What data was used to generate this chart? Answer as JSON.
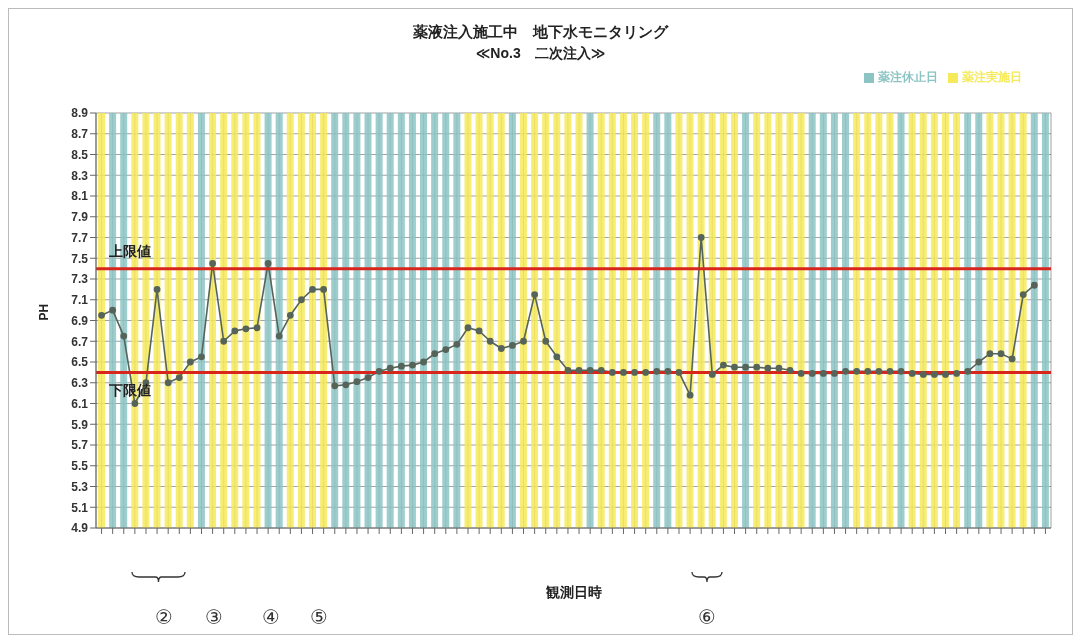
{
  "chart_data": {
    "type": "line",
    "title": "薬液注入施工中　地下水モニタリング",
    "subtitle": "≪No.3　二次注入≫",
    "xlabel": "観測日時",
    "ylabel": "PH",
    "categories": [
      null,
      null,
      null,
      null,
      null,
      null,
      null,
      null,
      null,
      null,
      null,
      null,
      null,
      null,
      null,
      null,
      null,
      null,
      null,
      null,
      null,
      null,
      null,
      null,
      null,
      null,
      null,
      null,
      null,
      null,
      null,
      null,
      null,
      null,
      null,
      null,
      null,
      null,
      null,
      null,
      null,
      null,
      null,
      null,
      null,
      null,
      null,
      null,
      null,
      null,
      null,
      null,
      null,
      null,
      null,
      null,
      null,
      null,
      null,
      null,
      null,
      null,
      null,
      null,
      null,
      null,
      null,
      null,
      null,
      null,
      null,
      null,
      null,
      null,
      null,
      null,
      null,
      null,
      null,
      null,
      null,
      null,
      null,
      null,
      null,
      null
    ],
    "stacked": true,
    "series": [
      {
        "name": "薬注実施日",
        "type": "bar",
        "color": "#f6ea5a",
        "values": [
          8.9,
          null,
          null,
          8.9,
          8.9,
          8.9,
          8.9,
          8.9,
          8.9,
          null,
          8.9,
          8.9,
          8.9,
          8.9,
          8.9,
          null,
          null,
          8.9,
          8.9,
          8.9,
          8.9,
          null,
          null,
          null,
          null,
          null,
          null,
          null,
          null,
          null,
          null,
          null,
          null,
          8.9,
          8.9,
          8.9,
          8.9,
          null,
          8.9,
          8.9,
          8.9,
          8.9,
          8.9,
          8.9,
          null,
          8.9,
          8.9,
          8.9,
          8.9,
          8.9,
          null,
          null,
          8.9,
          8.9,
          8.9,
          8.9,
          8.9,
          8.9,
          null,
          8.9,
          8.9,
          8.9,
          8.9,
          8.9,
          null,
          null,
          null,
          null,
          8.9,
          8.9,
          8.9,
          8.9,
          null,
          8.9,
          8.9,
          8.9,
          8.9,
          8.9,
          null,
          null,
          8.9,
          8.9,
          8.9,
          8.9,
          null,
          null
        ]
      },
      {
        "name": "薬注休止日",
        "type": "bar",
        "color": "#8cc4c4",
        "values": [
          null,
          8.9,
          8.9,
          null,
          null,
          null,
          null,
          null,
          null,
          8.9,
          null,
          null,
          null,
          null,
          null,
          8.9,
          8.9,
          null,
          null,
          null,
          null,
          8.9,
          8.9,
          8.9,
          8.9,
          8.9,
          8.9,
          8.9,
          8.9,
          8.9,
          8.9,
          8.9,
          8.9,
          null,
          null,
          null,
          null,
          8.9,
          null,
          null,
          null,
          null,
          null,
          null,
          8.9,
          null,
          null,
          null,
          null,
          null,
          8.9,
          8.9,
          null,
          null,
          null,
          null,
          null,
          null,
          8.9,
          null,
          null,
          null,
          null,
          null,
          8.9,
          8.9,
          8.9,
          8.9,
          null,
          null,
          null,
          null,
          8.9,
          null,
          null,
          null,
          null,
          null,
          8.9,
          8.9,
          null,
          null,
          null,
          null,
          8.9,
          8.9
        ]
      },
      {
        "color": "#56645a",
        "values": [
          6.95,
          7.0,
          6.75,
          6.1,
          6.3,
          7.2,
          6.3,
          6.35,
          6.5,
          6.55,
          7.45,
          6.7,
          6.8,
          6.82,
          6.83,
          7.45,
          6.75,
          6.95,
          7.1,
          7.2,
          7.2,
          6.27,
          6.28,
          6.31,
          6.35,
          6.41,
          6.44,
          6.46,
          6.47,
          6.5,
          6.58,
          6.62,
          6.67,
          6.83,
          6.8,
          6.7,
          6.63,
          6.66,
          6.7,
          7.15,
          6.7,
          6.55,
          6.42,
          6.42,
          6.42,
          6.42,
          6.4,
          6.4,
          6.4,
          6.4,
          6.41,
          6.41,
          6.4,
          6.18,
          7.7,
          6.38,
          6.47,
          6.45,
          6.45,
          6.45,
          6.44,
          6.44,
          6.42,
          6.39,
          6.39,
          6.39,
          6.39,
          6.41,
          6.41,
          6.41,
          6.41,
          6.41,
          6.41,
          6.39,
          6.38,
          6.38,
          6.38,
          6.39,
          6.41,
          6.5,
          6.58,
          6.58,
          6.53,
          7.15,
          7.24,
          null
        ]
      }
    ],
    "ylim": [
      4.9,
      8.9
    ],
    "yticks": [
      4.9,
      5.1,
      5.3,
      5.5,
      5.7,
      5.9,
      6.1,
      6.3,
      6.5,
      6.7,
      6.9,
      7.1,
      7.3,
      7.5,
      7.7,
      7.9,
      8.1,
      8.3,
      8.5,
      8.7,
      8.9
    ],
    "ref_lines": [
      {
        "axis": "y",
        "value": 7.4,
        "label": "上限値",
        "color": "#d9261c"
      },
      {
        "axis": "y",
        "value": 6.4,
        "label": "下限値",
        "color": "#d9261c"
      }
    ],
    "annotations": [
      "②",
      "③",
      "④",
      "⑤",
      "⑥"
    ],
    "grid": true,
    "legend": "top right",
    "marker": "circle",
    "line_style": "solid"
  }
}
